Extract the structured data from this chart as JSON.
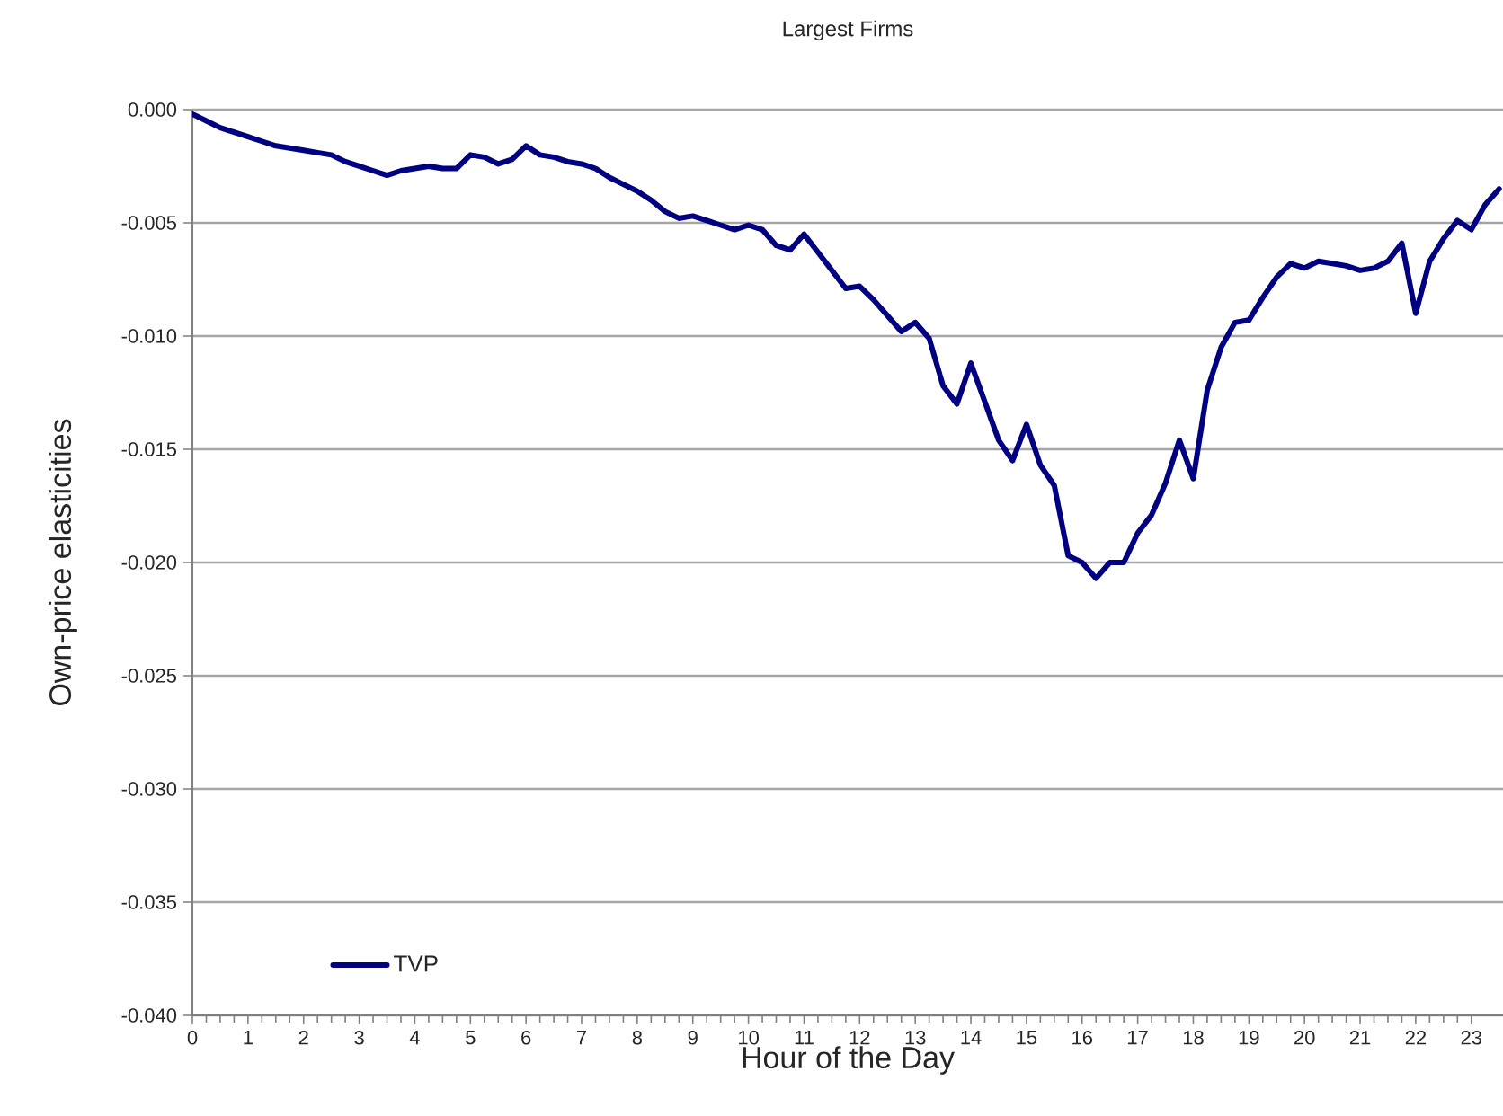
{
  "chart_data": {
    "type": "line",
    "title": "Largest Firms",
    "xlabel": "Hour of the Day",
    "ylabel": "Own-price elasticities",
    "x": [
      0,
      0.25,
      0.5,
      0.75,
      1,
      1.25,
      1.5,
      1.75,
      2,
      2.25,
      2.5,
      2.75,
      3,
      3.25,
      3.5,
      3.75,
      4,
      4.25,
      4.5,
      4.75,
      5,
      5.25,
      5.5,
      5.75,
      6,
      6.25,
      6.5,
      6.75,
      7,
      7.25,
      7.5,
      7.75,
      8,
      8.25,
      8.5,
      8.75,
      9,
      9.25,
      9.5,
      9.75,
      10,
      10.25,
      10.5,
      10.75,
      11,
      11.25,
      11.5,
      11.75,
      12,
      12.25,
      12.5,
      12.75,
      13,
      13.25,
      13.5,
      13.75,
      14,
      14.25,
      14.5,
      14.75,
      15,
      15.25,
      15.5,
      15.75,
      16,
      16.25,
      16.5,
      16.75,
      17,
      17.25,
      17.5,
      17.75,
      18,
      18.25,
      18.5,
      18.75,
      19,
      19.25,
      19.5,
      19.75,
      20,
      20.25,
      20.5,
      20.75,
      21,
      21.25,
      21.5,
      21.75,
      22,
      22.25,
      22.5,
      22.75,
      23,
      23.25,
      23.5
    ],
    "series": [
      {
        "name": "TVP",
        "color": "#000080",
        "values": [
          -0.0002,
          -0.0005,
          -0.0008,
          -0.001,
          -0.0012,
          -0.0014,
          -0.0016,
          -0.0017,
          -0.0018,
          -0.0019,
          -0.002,
          -0.0023,
          -0.0025,
          -0.0027,
          -0.0029,
          -0.0027,
          -0.0026,
          -0.0025,
          -0.0026,
          -0.0026,
          -0.002,
          -0.0021,
          -0.0024,
          -0.0022,
          -0.0016,
          -0.002,
          -0.0021,
          -0.0023,
          -0.0024,
          -0.0026,
          -0.003,
          -0.0033,
          -0.0036,
          -0.004,
          -0.0045,
          -0.0048,
          -0.0047,
          -0.0049,
          -0.0051,
          -0.0053,
          -0.0051,
          -0.0053,
          -0.006,
          -0.0062,
          -0.0055,
          -0.0063,
          -0.0071,
          -0.0079,
          -0.0078,
          -0.0084,
          -0.0091,
          -0.0098,
          -0.0094,
          -0.0101,
          -0.0122,
          -0.013,
          -0.0112,
          -0.0129,
          -0.0146,
          -0.0155,
          -0.0139,
          -0.0157,
          -0.0166,
          -0.0197,
          -0.02,
          -0.0207,
          -0.02,
          -0.02,
          -0.0187,
          -0.0179,
          -0.0165,
          -0.0146,
          -0.0163,
          -0.0124,
          -0.0105,
          -0.0094,
          -0.0093,
          -0.0083,
          -0.0074,
          -0.0068,
          -0.007,
          -0.0067,
          -0.0068,
          -0.0069,
          -0.0071,
          -0.007,
          -0.0067,
          -0.0059,
          -0.009,
          -0.0067,
          -0.0057,
          -0.0049,
          -0.0053,
          -0.0042,
          -0.0035
        ]
      }
    ],
    "xlim": [
      0,
      23.57
    ],
    "ylim": [
      -0.04,
      0
    ],
    "xticks": [
      0,
      1,
      2,
      3,
      4,
      5,
      6,
      7,
      8,
      9,
      10,
      11,
      12,
      13,
      14,
      15,
      16,
      17,
      18,
      19,
      20,
      21,
      22,
      23
    ],
    "yticks": [
      {
        "value": -0.04,
        "label": "-0.040"
      },
      {
        "value": -0.035,
        "label": "-0.035"
      },
      {
        "value": -0.03,
        "label": "-0.030"
      },
      {
        "value": -0.025,
        "label": "-0.025"
      },
      {
        "value": -0.02,
        "label": "-0.020"
      },
      {
        "value": -0.015,
        "label": "-0.015"
      },
      {
        "value": -0.01,
        "label": "-0.010"
      },
      {
        "value": -0.005,
        "label": "-0.005"
      },
      {
        "value": 0,
        "label": "0.000"
      }
    ],
    "grid": "y",
    "legend": "bottom left",
    "marker": "none",
    "line_style": "solid"
  }
}
